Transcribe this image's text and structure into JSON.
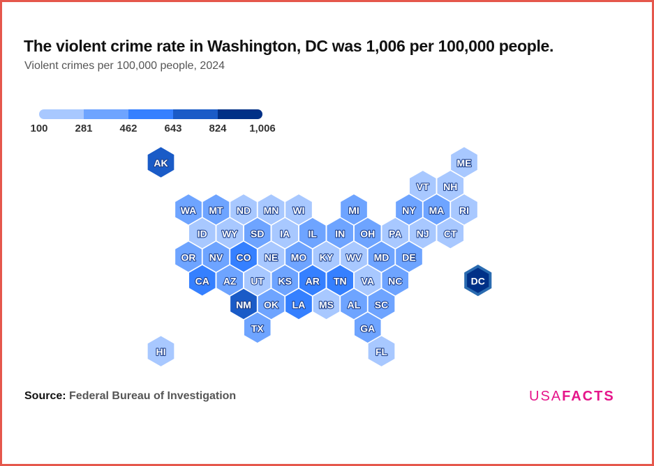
{
  "title": "The violent crime rate in Washington, DC was 1,006 per 100,000 people.",
  "subtitle": "Violent crimes per 100,000 people, 2024",
  "source_label": "Source:",
  "source_value": "Federal Bureau of Investigation",
  "logo": {
    "part1": "USA",
    "part2": "FACTS"
  },
  "chart_data": {
    "type": "heatmap",
    "subtype": "hex-tile-map",
    "title": "The violent crime rate in Washington, DC was 1,006 per 100,000 people.",
    "legend": {
      "ticks": [
        "100",
        "281",
        "462",
        "643",
        "824",
        "1,006"
      ],
      "colors": [
        "#a8c8ff",
        "#6ea4ff",
        "#3580ff",
        "#1a5bc7",
        "#003087"
      ],
      "placement": "top-left"
    },
    "highlight": "DC",
    "states": [
      {
        "id": "AK",
        "col": -1,
        "row": 0,
        "bin": 4
      },
      {
        "id": "ME",
        "col": 10,
        "row": 0,
        "bin": 1
      },
      {
        "id": "VT",
        "col": 8,
        "row": 1,
        "bin": 1
      },
      {
        "id": "NH",
        "col": 9,
        "row": 1,
        "bin": 1
      },
      {
        "id": "WA",
        "col": 0,
        "row": 2,
        "bin": 2
      },
      {
        "id": "MT",
        "col": 1,
        "row": 2,
        "bin": 2
      },
      {
        "id": "ND",
        "col": 2,
        "row": 2,
        "bin": 1
      },
      {
        "id": "MN",
        "col": 3,
        "row": 2,
        "bin": 1
      },
      {
        "id": "WI",
        "col": 4,
        "row": 2,
        "bin": 1
      },
      {
        "id": "MI",
        "col": 6,
        "row": 2,
        "bin": 2
      },
      {
        "id": "NY",
        "col": 8,
        "row": 2,
        "bin": 2
      },
      {
        "id": "MA",
        "col": 9,
        "row": 2,
        "bin": 2
      },
      {
        "id": "RI",
        "col": 10,
        "row": 2,
        "bin": 1
      },
      {
        "id": "ID",
        "col": 0,
        "row": 3,
        "bin": 1
      },
      {
        "id": "WY",
        "col": 1,
        "row": 3,
        "bin": 1
      },
      {
        "id": "SD",
        "col": 2,
        "row": 3,
        "bin": 2
      },
      {
        "id": "IA",
        "col": 3,
        "row": 3,
        "bin": 1
      },
      {
        "id": "IL",
        "col": 4,
        "row": 3,
        "bin": 2
      },
      {
        "id": "IN",
        "col": 5,
        "row": 3,
        "bin": 2
      },
      {
        "id": "OH",
        "col": 6,
        "row": 3,
        "bin": 2
      },
      {
        "id": "PA",
        "col": 7,
        "row": 3,
        "bin": 1
      },
      {
        "id": "NJ",
        "col": 8,
        "row": 3,
        "bin": 1
      },
      {
        "id": "CT",
        "col": 9,
        "row": 3,
        "bin": 1
      },
      {
        "id": "OR",
        "col": 0,
        "row": 4,
        "bin": 2
      },
      {
        "id": "NV",
        "col": 1,
        "row": 4,
        "bin": 2
      },
      {
        "id": "CO",
        "col": 2,
        "row": 4,
        "bin": 3
      },
      {
        "id": "NE",
        "col": 3,
        "row": 4,
        "bin": 1
      },
      {
        "id": "MO",
        "col": 4,
        "row": 4,
        "bin": 2
      },
      {
        "id": "KY",
        "col": 5,
        "row": 4,
        "bin": 1
      },
      {
        "id": "WV",
        "col": 6,
        "row": 4,
        "bin": 1
      },
      {
        "id": "MD",
        "col": 7,
        "row": 4,
        "bin": 2
      },
      {
        "id": "DE",
        "col": 8,
        "row": 4,
        "bin": 2
      },
      {
        "id": "CA",
        "col": 0,
        "row": 5,
        "bin": 3
      },
      {
        "id": "AZ",
        "col": 1,
        "row": 5,
        "bin": 2
      },
      {
        "id": "UT",
        "col": 2,
        "row": 5,
        "bin": 1
      },
      {
        "id": "KS",
        "col": 3,
        "row": 5,
        "bin": 2
      },
      {
        "id": "AR",
        "col": 4,
        "row": 5,
        "bin": 3
      },
      {
        "id": "TN",
        "col": 5,
        "row": 5,
        "bin": 3
      },
      {
        "id": "VA",
        "col": 6,
        "row": 5,
        "bin": 1
      },
      {
        "id": "NC",
        "col": 7,
        "row": 5,
        "bin": 2
      },
      {
        "id": "DC",
        "col": 10,
        "row": 5,
        "bin": 5,
        "value": 1006
      },
      {
        "id": "NM",
        "col": 2,
        "row": 6,
        "bin": 4
      },
      {
        "id": "OK",
        "col": 3,
        "row": 6,
        "bin": 2
      },
      {
        "id": "LA",
        "col": 4,
        "row": 6,
        "bin": 3
      },
      {
        "id": "MS",
        "col": 5,
        "row": 6,
        "bin": 1
      },
      {
        "id": "AL",
        "col": 6,
        "row": 6,
        "bin": 2
      },
      {
        "id": "SC",
        "col": 7,
        "row": 6,
        "bin": 2
      },
      {
        "id": "TX",
        "col": 2,
        "row": 7,
        "bin": 2
      },
      {
        "id": "GA",
        "col": 6,
        "row": 7,
        "bin": 2
      },
      {
        "id": "HI",
        "col": -1,
        "row": 8,
        "bin": 1
      },
      {
        "id": "FL",
        "col": 7,
        "row": 8,
        "bin": 1
      }
    ]
  }
}
